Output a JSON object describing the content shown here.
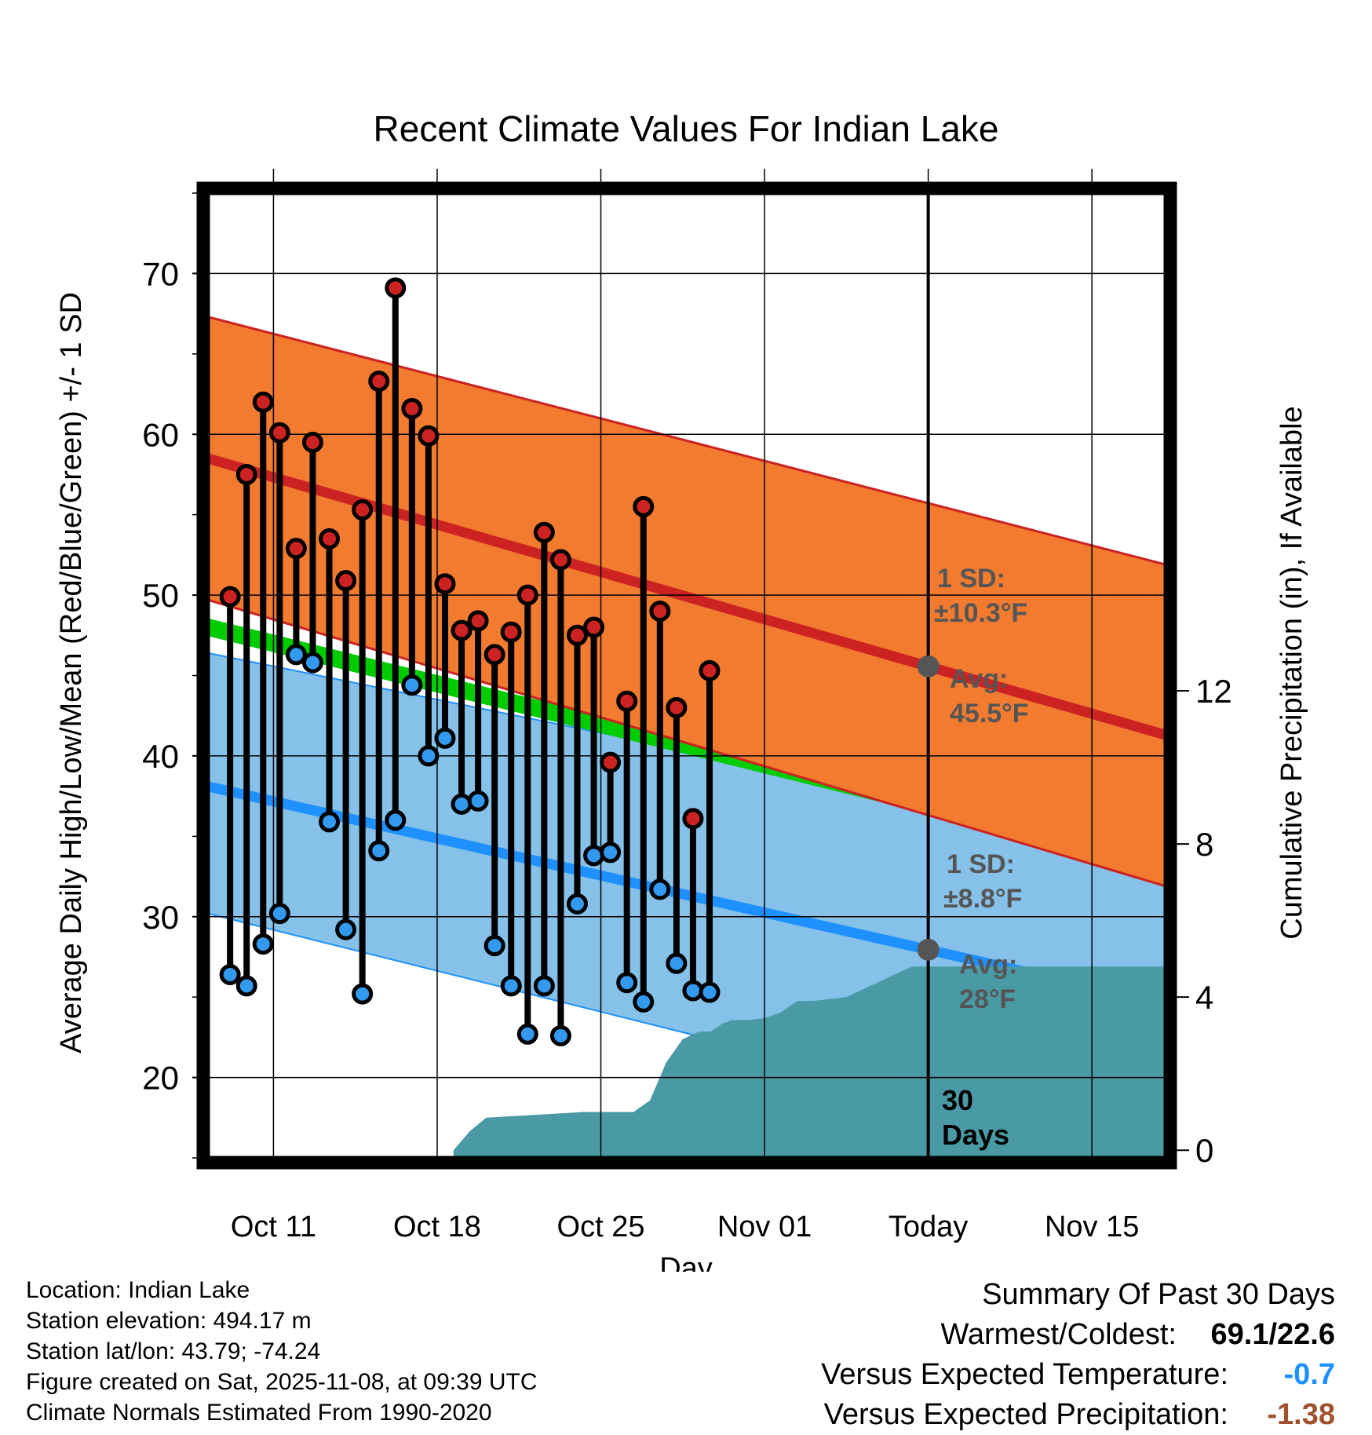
{
  "chart_data": {
    "type": "line",
    "title": "Recent Climate Values For Indian Lake",
    "xlabel": "Day",
    "ylabel": "Average Daily High/Low/Mean (Red/Blue/Green) +/- 1 SD",
    "y2label": "Cumulative Precipitation (in), If Available",
    "ylim": [
      15,
      75
    ],
    "y2lim": [
      -0.2,
      25
    ],
    "xlim": [
      -1,
      57.5
    ],
    "y_ticks": [
      "20",
      "30",
      "40",
      "50",
      "60",
      "70"
    ],
    "y2_ticks": [
      "0",
      "4",
      "8",
      "12"
    ],
    "x_ticks": [
      {
        "day": 3,
        "label": "Oct 11"
      },
      {
        "day": 13,
        "label": "Oct 18"
      },
      {
        "day": 23,
        "label": "Oct 25"
      },
      {
        "day": 33,
        "label": "Nov 01"
      },
      {
        "day": 43,
        "label": "Today"
      },
      {
        "day": 53,
        "label": "Nov 15"
      }
    ],
    "normals": {
      "high_avg": [
        58.5,
        41.3
      ],
      "high_sd": [
        67.3,
        51.9
      ],
      "high_minus_sd": [
        49.7,
        31.9
      ],
      "low_avg": [
        38.1,
        24.6
      ],
      "low_plus_sd": [
        46.4,
        34.3
      ],
      "low_minus_sd": [
        30.2,
        15.3
      ],
      "mean": [
        48.0,
        33.3
      ]
    },
    "series": [
      {
        "name": "Daily High",
        "color": "#cc2222",
        "values": [
          49.9,
          57.5,
          62.0,
          60.1,
          52.9,
          59.5,
          53.5,
          50.9,
          55.3,
          63.3,
          69.1,
          61.6,
          59.9,
          50.7,
          47.8,
          48.4,
          46.3,
          47.7,
          50.0,
          53.9,
          52.2,
          47.5,
          48.0,
          39.6,
          43.4,
          55.5,
          49.0,
          43.0,
          36.1,
          45.3
        ]
      },
      {
        "name": "Daily Low",
        "color": "#3399ee",
        "values": [
          26.4,
          25.7,
          28.3,
          30.2,
          46.3,
          45.8,
          35.9,
          29.2,
          25.2,
          34.1,
          36.0,
          44.4,
          40.0,
          41.1,
          37.0,
          37.2,
          28.2,
          25.7,
          22.7,
          25.7,
          22.6,
          30.8,
          33.8,
          34.0,
          25.9,
          24.7,
          31.7,
          27.1,
          25.4,
          25.3
        ]
      }
    ],
    "precipitation": {
      "name": "Cumulative Precipitation",
      "color": "#4a9aa5",
      "days": [
        14,
        15,
        16,
        18,
        22,
        25,
        26,
        27,
        28,
        29,
        29.7,
        30.4,
        31,
        32,
        33,
        34,
        35,
        36,
        38,
        39,
        40,
        41,
        42,
        43,
        57.5
      ],
      "values": [
        0,
        0.5,
        0.85,
        0.9,
        1.0,
        1.0,
        1.3,
        2.3,
        2.9,
        3.1,
        3.1,
        3.3,
        3.4,
        3.4,
        3.45,
        3.6,
        3.9,
        3.9,
        4.0,
        4.2,
        4.4,
        4.6,
        4.8,
        4.8,
        4.8
      ]
    },
    "annotations": {
      "high_sd": "1 SD:",
      "high_sd_value": "±10.3°F",
      "high_avg": "Avg:",
      "high_avg_value": "45.5°F",
      "low_sd": "1 SD:",
      "low_sd_value": "±8.8°F",
      "low_avg": "Avg:",
      "low_avg_value": "28°F",
      "period_line1": "30",
      "period_line2": "Days"
    },
    "colors": {
      "high_band": "#f27b30",
      "high_line": "#cc2222",
      "low_band": "#85c1e9",
      "low_line": "#1e90ff",
      "mean_band": "#00cc00",
      "precip": "#4a9aa5",
      "marker_grey": "#555555"
    }
  },
  "info": {
    "location": "Location: Indian Lake",
    "elevation": "Station elevation: 494.17 m",
    "latlon": "Station lat/lon: 43.79; -74.24",
    "created": "Figure created on Sat, 2025-11-08, at 09:39 UTC",
    "normals": "Climate Normals Estimated From 1990-2020"
  },
  "summary": {
    "title": "Summary Of Past 30 Days",
    "warm_cold_label": "Warmest/Coldest:",
    "warm_cold_value": "69.1/22.6",
    "temp_label": "Versus Expected Temperature:",
    "temp_value": "-0.7",
    "temp_color": "#1e90ff",
    "precip_label": "Versus Expected Precipitation:",
    "precip_value": "-1.38",
    "precip_color": "#a0522d"
  }
}
